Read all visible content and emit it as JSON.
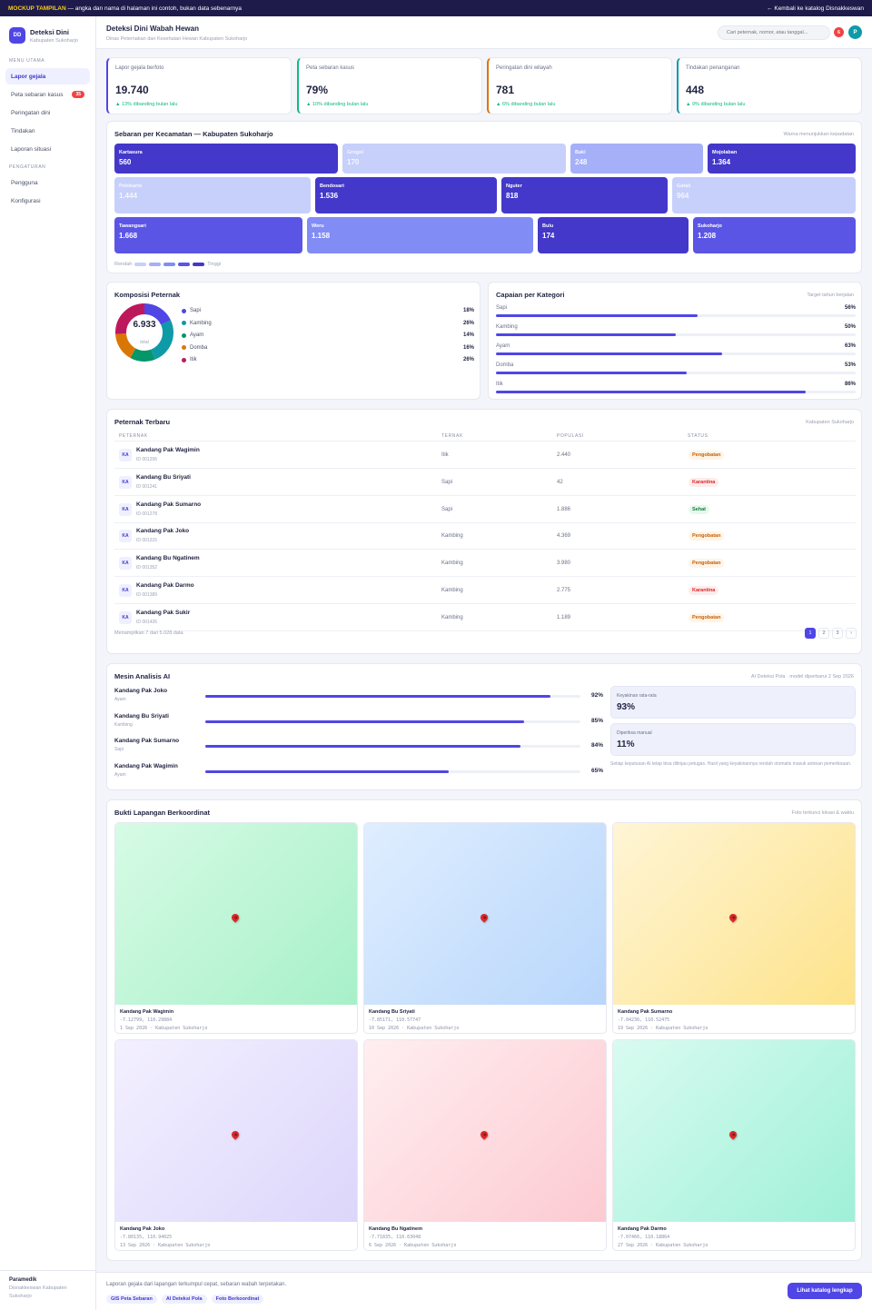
{
  "banner": {
    "tag": "MOCKUP TAMPILAN",
    "text": " — angka dan nama di halaman ini contoh, bukan data sebenarnya",
    "back": "← Kembali ke katalog Disnakkeswan"
  },
  "brand": {
    "logo": "DD",
    "name": "Deteksi Dini",
    "sub": "Kabupaten Sukoharjo"
  },
  "sidebar": {
    "section_main": "MENU UTAMA",
    "items": [
      {
        "label": "Lapor gejala",
        "active": true
      },
      {
        "label": "Peta sebaran kasus",
        "badge": "35"
      },
      {
        "label": "Peringatan dini"
      },
      {
        "label": "Tindakan"
      },
      {
        "label": "Laporan situasi"
      }
    ],
    "section_settings": "PENGATURAN",
    "settings": [
      {
        "label": "Pengguna"
      },
      {
        "label": "Konfigurasi"
      }
    ],
    "user_role": "Paramedik",
    "user_org": "Disnakkeswan Kabupaten Sukoharjo"
  },
  "header": {
    "title": "Deteksi Dini Wabah Hewan",
    "subtitle": "Dinas Peternakan dan Kesehatan Hewan Kabupaten Sukoharjo",
    "search_placeholder": "Cari peternak, nomor, atau tanggal...",
    "notif_count": "6",
    "avatar": "P"
  },
  "stats": [
    {
      "label": "Lapor gejala berfoto",
      "value": "19.740",
      "change": "▲ 13% dibanding bulan lalu",
      "accent": "#4f46e5"
    },
    {
      "label": "Peta sebaran kasus",
      "value": "79%",
      "change": "▲ 10% dibanding bulan lalu",
      "accent": "#10b981"
    },
    {
      "label": "Peringatan dini wilayah",
      "value": "781",
      "change": "▲ 6% dibanding bulan lalu",
      "accent": "#d97706"
    },
    {
      "label": "Tindakan penanganan",
      "value": "448",
      "change": "▲ 9% dibanding bulan lalu",
      "accent": "#0e9aa7"
    }
  ],
  "spread": {
    "title": "Sebaran per Kecamatan — Kabupaten Sukoharjo",
    "note": "Warna menunjukkan kepadatan",
    "low": "Rendah",
    "high": "Tinggi",
    "scale_colors": [
      "#c7d0fb",
      "#a5b0f8",
      "#818cf5",
      "#5b55e6",
      "#4338ca"
    ],
    "districts": [
      {
        "name": "Kartasura",
        "value": "560",
        "level": 5
      },
      {
        "name": "Grogol",
        "value": "170",
        "level": 1
      },
      {
        "name": "Baki",
        "value": "248",
        "level": 2
      },
      {
        "name": "Mojolaban",
        "value": "1.364",
        "level": 5
      },
      {
        "name": "Polokarto",
        "value": "1.444",
        "level": 1
      },
      {
        "name": "Bendosari",
        "value": "1.536",
        "level": 5
      },
      {
        "name": "Nguter",
        "value": "818",
        "level": 5
      },
      {
        "name": "Gatak",
        "value": "964",
        "level": 1
      },
      {
        "name": "Tawangsari",
        "value": "1.668",
        "level": 4
      },
      {
        "name": "Weru",
        "value": "1.158",
        "level": 3
      },
      {
        "name": "Bulu",
        "value": "174",
        "level": 5
      },
      {
        "name": "Sukoharjo",
        "value": "1.208",
        "level": 4
      }
    ]
  },
  "composition": {
    "title": "Komposisi Peternak",
    "total": "6.933",
    "total_label": "total",
    "items": [
      {
        "name": "Sapi",
        "pct": "18%",
        "value": 18,
        "color": "#4f46e5"
      },
      {
        "name": "Kambing",
        "pct": "26%",
        "value": 26,
        "color": "#0e9aa7"
      },
      {
        "name": "Ayam",
        "pct": "14%",
        "value": 14,
        "color": "#059669"
      },
      {
        "name": "Domba",
        "pct": "16%",
        "value": 16,
        "color": "#d97706"
      },
      {
        "name": "Itik",
        "pct": "26%",
        "value": 26,
        "color": "#be185d"
      }
    ]
  },
  "achievement": {
    "title": "Capaian per Kategori",
    "note": "Target tahun berjalan",
    "items": [
      {
        "name": "Sapi",
        "pct": "56%",
        "value": 56
      },
      {
        "name": "Kambing",
        "pct": "50%",
        "value": 50
      },
      {
        "name": "Ayam",
        "pct": "63%",
        "value": 63
      },
      {
        "name": "Domba",
        "pct": "53%",
        "value": 53
      },
      {
        "name": "Itik",
        "pct": "86%",
        "value": 86
      }
    ]
  },
  "farmers": {
    "title": "Peternak Terbaru",
    "note": "Kabupaten Sukoharjo",
    "headers": [
      "PETERNAK",
      "TERNAK",
      "POPULASI",
      "STATUS"
    ],
    "rows": [
      {
        "initials": "KA",
        "name": "Kandang Pak Wagimin",
        "id": "ID 001206",
        "type": "Itik",
        "pop": "2.440",
        "status": "Pengobatan",
        "kind": "warn"
      },
      {
        "initials": "KA",
        "name": "Kandang Bu Sriyati",
        "id": "ID 001241",
        "type": "Sapi",
        "pop": "42",
        "status": "Karantina",
        "kind": "bad"
      },
      {
        "initials": "KA",
        "name": "Kandang Pak Sumarno",
        "id": "ID 001278",
        "type": "Sapi",
        "pop": "1.886",
        "status": "Sehat",
        "kind": "ok"
      },
      {
        "initials": "KA",
        "name": "Kandang Pak Joko",
        "id": "ID 001315",
        "type": "Kambing",
        "pop": "4.369",
        "status": "Pengobatan",
        "kind": "warn"
      },
      {
        "initials": "KA",
        "name": "Kandang Bu Ngatinem",
        "id": "ID 001352",
        "type": "Kambing",
        "pop": "3.980",
        "status": "Pengobatan",
        "kind": "warn"
      },
      {
        "initials": "KA",
        "name": "Kandang Pak Darmo",
        "id": "ID 001389",
        "type": "Kambing",
        "pop": "2.775",
        "status": "Karantina",
        "kind": "bad"
      },
      {
        "initials": "KA",
        "name": "Kandang Pak Sukir",
        "id": "ID 001426",
        "type": "Kambing",
        "pop": "1.189",
        "status": "Pengobatan",
        "kind": "warn"
      }
    ],
    "footer": "Menampilkan 7 dari 5.028 data",
    "pages": [
      "1",
      "2",
      "3",
      "›"
    ]
  },
  "ai": {
    "title": "Mesin Analisis AI",
    "note": "AI Deteksi Pola · model diperbarui 2 Sep 2026",
    "rows": [
      {
        "name": "Kandang Pak Joko",
        "type": "Ayam",
        "pct": "92%",
        "value": 92
      },
      {
        "name": "Kandang Bu Sriyati",
        "type": "Kambing",
        "pct": "85%",
        "value": 85
      },
      {
        "name": "Kandang Pak Sumarno",
        "type": "Sapi",
        "pct": "84%",
        "value": 84
      },
      {
        "name": "Kandang Pak Wagimin",
        "type": "Ayam",
        "pct": "65%",
        "value": 65
      }
    ],
    "conf_label": "Keyakinan rata-rata",
    "conf_value": "93%",
    "manual_label": "Diperiksa manual",
    "manual_value": "11%",
    "disclaimer": "Setiap keputusan AI tetap bisa ditinjau petugas. Hasil yang keyakinannya rendah otomatis masuk antrean pemeriksaan."
  },
  "evidence": {
    "title": "Bukti Lapangan Berkoordinat",
    "note": "Foto terkunci lokasi & waktu",
    "items": [
      {
        "name": "Kandang Pak Wagimin",
        "coords": "-7.12799, 110.29884",
        "date": "1 Sep 2026 · Kabupaten Sukoharjo",
        "c1": "#d7fbe6",
        "c2": "#a7f0c8"
      },
      {
        "name": "Kandang Bu Sriyati",
        "coords": "-7.85171, 110.57747",
        "date": "10 Sep 2026 · Kabupaten Sukoharjo",
        "c1": "#dfeeff",
        "c2": "#b8d6fb"
      },
      {
        "name": "Kandang Pak Sumarno",
        "coords": "-7.04236, 110.52475",
        "date": "19 Sep 2026 · Kabupaten Sukoharjo",
        "c1": "#fff5d6",
        "c2": "#fde38a"
      },
      {
        "name": "Kandang Pak Joko",
        "coords": "-7.80135, 110.94025",
        "date": "13 Sep 2026 · Kabupaten Sukoharjo",
        "c1": "#f3f0ff",
        "c2": "#dcd6fb"
      },
      {
        "name": "Kandang Bu Ngatinem",
        "coords": "-7.71835, 110.63048",
        "date": "6 Sep 2026 · Kabupaten Sukoharjo",
        "c1": "#ffeef0",
        "c2": "#fccad1"
      },
      {
        "name": "Kandang Pak Darmo",
        "coords": "-7.07466, 110.18864",
        "date": "27 Sep 2026 · Kabupaten Sukoharjo",
        "c1": "#d9fbf0",
        "c2": "#9ff0d8"
      }
    ]
  },
  "footer": {
    "text": "Laporan gejala dari lapangan terkumpul cepat, sebaran wabah terpetakan.",
    "chips": [
      "GIS Peta Sebaran",
      "AI Deteksi Pola",
      "Foto Berkoordinat"
    ],
    "cta": "Lihat katalog lengkap"
  }
}
